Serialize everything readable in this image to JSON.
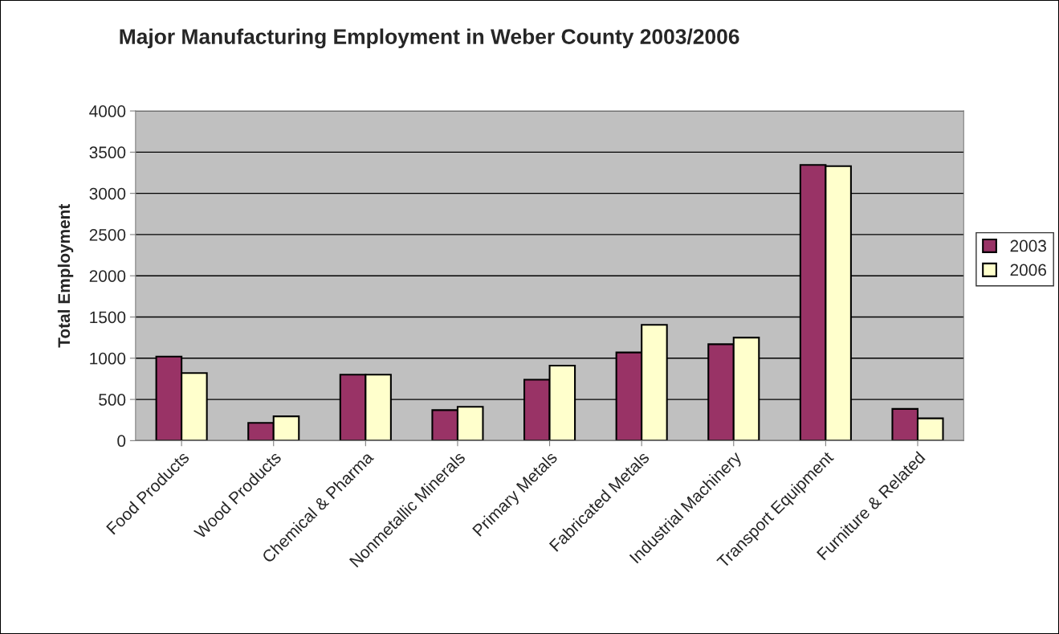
{
  "chart_data": {
    "type": "bar",
    "title": "Major Manufacturing Employment in Weber County 2003/2006",
    "ylabel": "Total Employment",
    "categories": [
      "Food Products",
      "Wood Products",
      "Chemical & Pharma",
      "Nonmetallic Minerals",
      "Primary Metals",
      "Fabricated Metals",
      "Industrial Machinery",
      "Transport Equipment",
      "Furniture & Related"
    ],
    "series": [
      {
        "name": "2003",
        "color": "#993366",
        "values": [
          1020,
          215,
          800,
          370,
          740,
          1070,
          1170,
          3345,
          385
        ]
      },
      {
        "name": "2006",
        "color": "#ffffcc",
        "values": [
          820,
          295,
          800,
          410,
          910,
          1405,
          1250,
          3330,
          270
        ]
      }
    ],
    "ylim": [
      0,
      4000
    ],
    "yticks": [
      0,
      500,
      1000,
      1500,
      2000,
      2500,
      3000,
      3500,
      4000
    ],
    "grid": "y",
    "legend": "right"
  }
}
